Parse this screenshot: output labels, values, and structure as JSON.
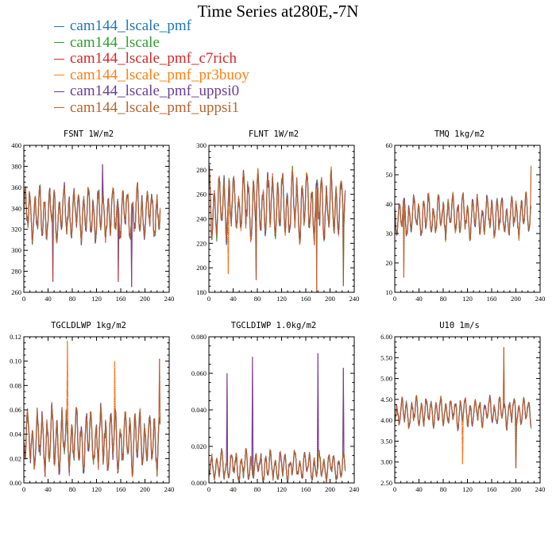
{
  "title": "Time Series at280E,-7N",
  "legend": [
    {
      "name": "cam144_lscale_pmf",
      "color": "#1f77b4"
    },
    {
      "name": "cam144_lscale",
      "color": "#2ca02c"
    },
    {
      "name": "cam144_lscale_pmf_c7rich",
      "color": "#d62728"
    },
    {
      "name": "cam144_lscale_pmf_pr3buoy",
      "color": "#ff7f0e"
    },
    {
      "name": "cam144_lscale_pmf_uppsi0",
      "color": "#6a3d9a"
    },
    {
      "name": "cam144_lscale_pmf_uppsi1",
      "color": "#b5652e"
    }
  ],
  "chart_data": [
    {
      "type": "line",
      "title": "FSNT   1W/m2",
      "x_range": [
        0,
        240
      ],
      "ylim": [
        260,
        400
      ],
      "xticks": [
        "0",
        "40",
        "80",
        "120",
        "160",
        "200",
        "240"
      ],
      "yticks": [
        "260",
        "280",
        "300",
        "320",
        "340",
        "360",
        "380",
        "400"
      ],
      "mean": 335,
      "amp": 25,
      "spikes": [
        [
          48,
          270
        ],
        [
          156,
          270
        ],
        [
          178,
          265
        ],
        [
          130,
          382
        ]
      ]
    },
    {
      "type": "line",
      "title": "FLNT   1W/m2",
      "x_range": [
        0,
        240
      ],
      "ylim": [
        180,
        300
      ],
      "xticks": [
        "0",
        "40",
        "80",
        "120",
        "160",
        "200",
        "240"
      ],
      "yticks": [
        "180",
        "200",
        "220",
        "240",
        "260",
        "280",
        "300"
      ],
      "mean": 250,
      "amp": 28,
      "spikes": [
        [
          32,
          195
        ],
        [
          78,
          190
        ],
        [
          178,
          180
        ],
        [
          222,
          185
        ]
      ]
    },
    {
      "type": "line",
      "title": "TMQ   1kg/m2",
      "x_range": [
        0,
        240
      ],
      "ylim": [
        10,
        60
      ],
      "xticks": [
        "0",
        "40",
        "80",
        "120",
        "160",
        "200",
        "240"
      ],
      "yticks": [
        "10",
        "20",
        "30",
        "40",
        "50",
        "60"
      ],
      "mean": 36,
      "amp": 7,
      "spikes": [
        [
          15,
          15
        ],
        [
          225,
          53
        ]
      ]
    },
    {
      "type": "line",
      "title": "TGCLDLWP   1kg/m2",
      "x_range": [
        0,
        240
      ],
      "ylim": [
        0,
        0.12
      ],
      "xticks": [
        "0",
        "40",
        "80",
        "120",
        "160",
        "200",
        "240"
      ],
      "yticks": [
        "0.00",
        "0.02",
        "0.04",
        "0.06",
        "0.08",
        "0.10",
        "0.12"
      ],
      "mean": 0.035,
      "amp": 0.025,
      "spikes": [
        [
          72,
          0.117
        ],
        [
          150,
          0.1
        ],
        [
          224,
          0.102
        ]
      ]
    },
    {
      "type": "line",
      "title": "TGCLDIWP   1.0kg/m2",
      "x_range": [
        0,
        240
      ],
      "ylim": [
        0,
        0.08
      ],
      "xticks": [
        "0",
        "40",
        "80",
        "120",
        "160",
        "200",
        "240"
      ],
      "yticks": [
        "0.000",
        "0.020",
        "0.040",
        "0.060",
        "0.080"
      ],
      "mean": 0.009,
      "amp": 0.008,
      "spikes": [
        [
          30,
          0.06
        ],
        [
          72,
          0.069
        ],
        [
          180,
          0.071
        ],
        [
          222,
          0.063
        ]
      ]
    },
    {
      "type": "line",
      "title": "U10   1m/s",
      "x_range": [
        0,
        240
      ],
      "ylim": [
        2.5,
        6.0
      ],
      "xticks": [
        "0",
        "40",
        "80",
        "120",
        "160",
        "200",
        "240"
      ],
      "yticks": [
        "2.50",
        "3.00",
        "3.50",
        "4.00",
        "4.50",
        "5.00",
        "5.50",
        "6.00"
      ],
      "mean": 4.2,
      "amp": 0.35,
      "spikes": [
        [
          180,
          5.75
        ],
        [
          200,
          2.85
        ],
        [
          112,
          2.95
        ]
      ]
    }
  ]
}
